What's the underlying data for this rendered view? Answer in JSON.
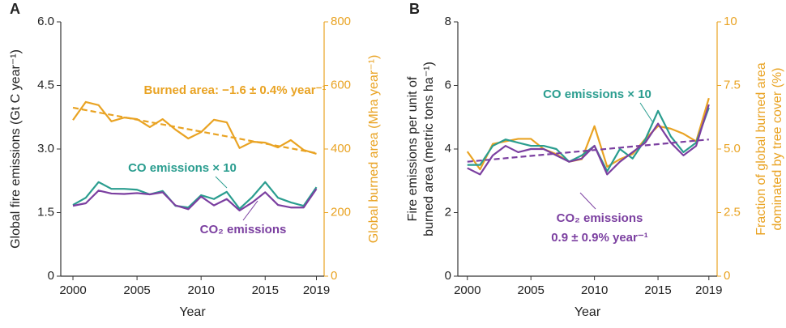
{
  "chart_data": [
    {
      "type": "line",
      "panel_label": "A",
      "x": [
        2000,
        2001,
        2002,
        2003,
        2004,
        2005,
        2006,
        2007,
        2008,
        2009,
        2010,
        2011,
        2012,
        2013,
        2014,
        2015,
        2016,
        2017,
        2018,
        2019
      ],
      "xlim": [
        1999.05,
        2019.6
      ],
      "xticks": [
        2000,
        2005,
        2010,
        2015,
        2019
      ],
      "ylim": [
        0,
        6
      ],
      "yticks": [
        0,
        1.5,
        {
          "value": 3,
          "label": "3.0"
        },
        4.5,
        {
          "value": 6,
          "label": "6.0"
        }
      ],
      "y2lim": [
        0,
        800
      ],
      "y2ticks": [
        0,
        200,
        400,
        600,
        800
      ],
      "xlabel": "Year",
      "ylabel": [
        "Global fire emissions (Gt C year⁻¹)"
      ],
      "y2label": [
        "Global burned area (Mha year⁻¹)"
      ],
      "series": [
        {
          "color": "#e9a323",
          "axis": "y2",
          "values": [
            491,
            548,
            538,
            487,
            499,
            494,
            469,
            494,
            461,
            433,
            453,
            492,
            484,
            403,
            423,
            420,
            405,
            428,
            397,
            385
          ]
        },
        {
          "name": "CO emissions × 10",
          "color": "#2a9d8f",
          "values": [
            1.68,
            1.85,
            2.22,
            2.06,
            2.06,
            2.04,
            1.93,
            2.01,
            1.66,
            1.62,
            1.91,
            1.82,
            1.99,
            1.59,
            1.87,
            2.22,
            1.85,
            1.74,
            1.66,
            2.1
          ]
        },
        {
          "name": "CO₂ emissions",
          "color": "#7b3fa0",
          "values": [
            1.66,
            1.72,
            2.02,
            1.95,
            1.94,
            1.96,
            1.93,
            1.98,
            1.67,
            1.58,
            1.88,
            1.67,
            1.82,
            1.55,
            1.74,
            1.98,
            1.68,
            1.62,
            1.62,
            2.06
          ]
        }
      ],
      "trend": {
        "label": "Burned area: −1.6 ± 0.4% year⁻¹",
        "color": "#e9a323",
        "axis": "y2",
        "x": [
          2000,
          2019
        ],
        "values": [
          530,
          387
        ]
      }
    },
    {
      "type": "line",
      "panel_label": "B",
      "x": [
        2000,
        2001,
        2002,
        2003,
        2004,
        2005,
        2006,
        2007,
        2008,
        2009,
        2010,
        2011,
        2012,
        2013,
        2014,
        2015,
        2016,
        2017,
        2018,
        2019
      ],
      "xlim": [
        1999.25,
        2019.65
      ],
      "xticks": [
        2000,
        2005,
        2010,
        2015,
        2019
      ],
      "ylim": [
        0,
        8
      ],
      "yticks": [
        0,
        2,
        4,
        6,
        8
      ],
      "y2lim": [
        0,
        10
      ],
      "y2ticks": [
        0,
        2.5,
        {
          "value": 5,
          "label": "5.0"
        },
        7.5,
        10
      ],
      "xlabel": "Year",
      "ylabel": [
        "Fire emissions per unit of",
        "burned area (metric tons ha⁻¹)"
      ],
      "y2label": [
        "Fraction of global burned area",
        "dominated by tree cover (%)"
      ],
      "series": [
        {
          "color": "#e9a323",
          "axis": "y2",
          "values": [
            4.9,
            4.2,
            5.2,
            5.3,
            5.4,
            5.4,
            5.0,
            4.8,
            4.5,
            4.6,
            5.9,
            4.3,
            4.6,
            4.8,
            5.4,
            5.9,
            5.8,
            5.6,
            5.3,
            7.0
          ]
        },
        {
          "name": "CO emissions × 10",
          "color": "#2a9d8f",
          "values": [
            3.5,
            3.5,
            4.1,
            4.3,
            4.2,
            4.1,
            4.1,
            4.0,
            3.6,
            3.8,
            4.1,
            3.3,
            4.0,
            3.7,
            4.3,
            5.2,
            4.4,
            3.9,
            4.2,
            5.3
          ]
        },
        {
          "name": "CO₂ emissions",
          "color": "#7b3fa0",
          "values": [
            3.4,
            3.2,
            3.8,
            4.1,
            3.9,
            4.0,
            4.0,
            3.8,
            3.6,
            3.7,
            4.1,
            3.2,
            3.6,
            3.9,
            4.2,
            4.8,
            4.2,
            3.8,
            4.1,
            5.4
          ]
        }
      ],
      "trend": {
        "label": "0.9 ± 0.9% year⁻¹",
        "color": "#7b3fa0",
        "x": [
          2000,
          2019
        ],
        "values": [
          3.6,
          4.3
        ]
      }
    }
  ]
}
